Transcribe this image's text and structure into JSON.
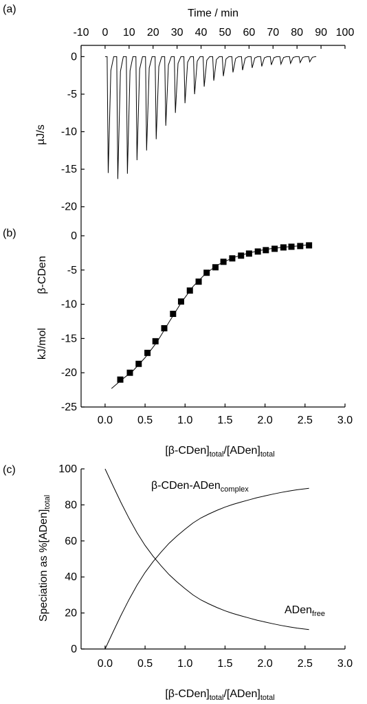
{
  "chart_data": [
    {
      "panel": "(a)",
      "type": "line",
      "xlabel": "Time / min",
      "ylabel": "µJ/s",
      "xlim": [
        -10,
        100
      ],
      "ylim": [
        -22.5,
        1.5
      ],
      "x_ticks": [
        "-10",
        "0",
        "10",
        "20",
        "30",
        "40",
        "50",
        "60",
        "70",
        "80",
        "90",
        "100"
      ],
      "y_ticks": [
        "0",
        "-5",
        "-10",
        "-15",
        "-20"
      ],
      "baseline": 0,
      "trace_end_min": 88,
      "injection_peaks": [
        {
          "time": 1.0,
          "value": -15.5
        },
        {
          "time": 5.0,
          "value": -16.3
        },
        {
          "time": 9.0,
          "value": -15.6
        },
        {
          "time": 13.0,
          "value": -13.8
        },
        {
          "time": 17.0,
          "value": -12.5
        },
        {
          "time": 21.0,
          "value": -11.0
        },
        {
          "time": 25.0,
          "value": -9.2
        },
        {
          "time": 29.0,
          "value": -7.5
        },
        {
          "time": 33.0,
          "value": -6.2
        },
        {
          "time": 37.0,
          "value": -5.0
        },
        {
          "time": 41.0,
          "value": -4.0
        },
        {
          "time": 45.0,
          "value": -3.2
        },
        {
          "time": 49.0,
          "value": -2.6
        },
        {
          "time": 53.0,
          "value": -2.1
        },
        {
          "time": 57.0,
          "value": -1.8
        },
        {
          "time": 61.0,
          "value": -1.5
        },
        {
          "time": 65.0,
          "value": -1.3
        },
        {
          "time": 69.0,
          "value": -1.1
        },
        {
          "time": 73.0,
          "value": -1.0
        },
        {
          "time": 77.0,
          "value": -0.9
        },
        {
          "time": 81.0,
          "value": -0.8
        },
        {
          "time": 85.0,
          "value": -0.7
        }
      ]
    },
    {
      "panel": "(b)",
      "type": "scatter",
      "ylabel_lines": [
        "kJ/mol",
        "β-CDen"
      ],
      "xlabel": {
        "parts": [
          [
            "[β-CDen]",
            ""
          ],
          [
            "total",
            "sub"
          ],
          [
            "/[ADen]",
            ""
          ],
          [
            "total",
            "sub"
          ]
        ]
      },
      "xlim": [
        -0.3,
        3.0
      ],
      "ylim": [
        -25,
        1.5
      ],
      "x_ticks": [
        "0.0",
        "0.5",
        "1.0",
        "1.5",
        "2.0",
        "2.5",
        "3.0"
      ],
      "y_ticks": [
        "0",
        "-5",
        "-10",
        "-15",
        "-20",
        "-25"
      ],
      "points": {
        "x": [
          0.19,
          0.31,
          0.42,
          0.53,
          0.63,
          0.74,
          0.85,
          0.95,
          1.06,
          1.17,
          1.27,
          1.38,
          1.48,
          1.59,
          1.7,
          1.8,
          1.91,
          2.01,
          2.12,
          2.23,
          2.33,
          2.44,
          2.55
        ],
        "y": [
          -21.0,
          -20.0,
          -18.7,
          -17.1,
          -15.4,
          -13.5,
          -11.4,
          -9.6,
          -8.0,
          -6.7,
          -5.4,
          -4.6,
          -3.8,
          -3.3,
          -2.9,
          -2.6,
          -2.3,
          -2.1,
          -1.9,
          -1.7,
          -1.6,
          -1.5,
          -1.4
        ]
      },
      "fit": {
        "x": [
          0.08,
          0.2,
          0.35,
          0.5,
          0.65,
          0.8,
          0.95,
          1.1,
          1.25,
          1.4,
          1.6,
          1.8,
          2.0,
          2.2,
          2.4,
          2.55
        ],
        "y": [
          -22.3,
          -21.1,
          -19.7,
          -17.8,
          -15.5,
          -12.6,
          -9.8,
          -7.4,
          -5.6,
          -4.3,
          -3.2,
          -2.5,
          -2.0,
          -1.7,
          -1.5,
          -1.3
        ]
      }
    },
    {
      "panel": "(c)",
      "type": "line",
      "ylabel": {
        "parts": [
          [
            "Speciation as %[ADen]",
            ""
          ],
          [
            "total",
            "sub"
          ]
        ]
      },
      "xlabel": {
        "parts": [
          [
            "[β-CDen]",
            ""
          ],
          [
            "total",
            "sub"
          ],
          [
            "/[ADen]",
            ""
          ],
          [
            "total",
            "sub"
          ]
        ]
      },
      "xlim": [
        -0.3,
        3.0
      ],
      "ylim": [
        0,
        100
      ],
      "x_ticks": [
        "0.0",
        "0.5",
        "1.0",
        "1.5",
        "2.0",
        "2.5",
        "3.0"
      ],
      "y_ticks": [
        "0",
        "20",
        "40",
        "60",
        "80",
        "100"
      ],
      "series": [
        {
          "name": {
            "parts": [
              [
                "β-CDen-ADen",
                ""
              ],
              [
                "complex",
                "sub"
              ]
            ]
          },
          "x": [
            0.0,
            0.1,
            0.2,
            0.3,
            0.4,
            0.5,
            0.6,
            0.7,
            0.8,
            0.9,
            1.0,
            1.1,
            1.2,
            1.3,
            1.4,
            1.5,
            1.6,
            1.7,
            1.8,
            1.9,
            2.0,
            2.1,
            2.2,
            2.3,
            2.4,
            2.55
          ],
          "y": [
            0,
            9.5,
            18.8,
            27.5,
            35.5,
            42.5,
            48.5,
            53.8,
            58.7,
            62.8,
            66.5,
            70.0,
            72.8,
            75.0,
            77.0,
            78.8,
            80.3,
            81.6,
            82.8,
            84.0,
            85.0,
            86.0,
            86.9,
            87.7,
            88.4,
            89.2
          ]
        },
        {
          "name": {
            "parts": [
              [
                "ADen",
                ""
              ],
              [
                "free",
                "sub"
              ]
            ]
          },
          "x": [
            0.0,
            0.1,
            0.2,
            0.3,
            0.4,
            0.5,
            0.6,
            0.7,
            0.8,
            0.9,
            1.0,
            1.1,
            1.2,
            1.3,
            1.4,
            1.5,
            1.6,
            1.7,
            1.8,
            1.9,
            2.0,
            2.1,
            2.2,
            2.3,
            2.4,
            2.55
          ],
          "y": [
            100,
            90.5,
            81.2,
            72.5,
            64.5,
            57.5,
            51.5,
            46.2,
            41.3,
            37.2,
            33.5,
            30.0,
            27.2,
            25.0,
            23.0,
            21.2,
            19.7,
            18.4,
            17.2,
            16.0,
            15.0,
            14.0,
            13.1,
            12.3,
            11.6,
            10.8
          ]
        }
      ]
    }
  ]
}
